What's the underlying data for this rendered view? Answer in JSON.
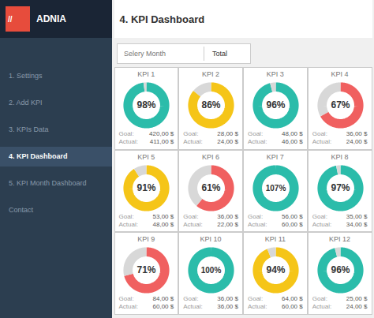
{
  "title": "4. KPI Dashboard",
  "sidebar": {
    "logo": [
      "//",
      "ADNIA"
    ],
    "items": [
      "1. Settings",
      "2. Add KPI",
      "3. KPIs Data",
      "4. KPI Dashboard",
      "5. KPI Month Dashboard",
      "Contact"
    ]
  },
  "selector": [
    "Selery Month",
    "Total"
  ],
  "chart_data": [
    {
      "type": "pie",
      "title": "KPI 1",
      "values": [
        98,
        2
      ],
      "colors": [
        "#2bbcaa",
        "#d8d8d8"
      ],
      "annotations": [
        "98%",
        "Goal:",
        "420,00 $",
        "Actual:",
        "411,00 $"
      ]
    },
    {
      "type": "pie",
      "title": "KPI 2",
      "values": [
        86,
        14
      ],
      "colors": [
        "#f5c518",
        "#d8d8d8"
      ],
      "annotations": [
        "86%",
        "Goal:",
        "28,00 $",
        "Actual:",
        "24,00 $"
      ]
    },
    {
      "type": "pie",
      "title": "KPI 3",
      "values": [
        96,
        4
      ],
      "colors": [
        "#2bbcaa",
        "#d8d8d8"
      ],
      "annotations": [
        "96%",
        "Goal:",
        "48,00 $",
        "Actual:",
        "46,00 $"
      ]
    },
    {
      "type": "pie",
      "title": "KPI 4",
      "values": [
        67,
        33
      ],
      "colors": [
        "#f06060",
        "#d8d8d8"
      ],
      "annotations": [
        "67%",
        "Goal:",
        "36,00 $",
        "Actual:",
        "24,00 $"
      ]
    },
    {
      "type": "pie",
      "title": "KPI 5",
      "values": [
        91,
        9
      ],
      "colors": [
        "#f5c518",
        "#d8d8d8"
      ],
      "annotations": [
        "91%",
        "Goal:",
        "53,00 $",
        "Actual:",
        "48,00 $"
      ]
    },
    {
      "type": "pie",
      "title": "KPI 6",
      "values": [
        61,
        39
      ],
      "colors": [
        "#f06060",
        "#d8d8d8"
      ],
      "annotations": [
        "61%",
        "Goal:",
        "36,00 $",
        "Actual:",
        "22,00 $"
      ]
    },
    {
      "type": "pie",
      "title": "KPI 7",
      "values": [
        100
      ],
      "colors": [
        "#2bbcaa"
      ],
      "annotations": [
        "107%",
        "Goal:",
        "56,00 $",
        "Actual:",
        "60,00 $"
      ]
    },
    {
      "type": "pie",
      "title": "KPI 8",
      "values": [
        97,
        3
      ],
      "colors": [
        "#2bbcaa",
        "#d8d8d8"
      ],
      "annotations": [
        "97%",
        "Goal:",
        "35,00 $",
        "Actual:",
        "34,00 $"
      ]
    },
    {
      "type": "pie",
      "title": "KPI 9",
      "values": [
        71,
        29
      ],
      "colors": [
        "#f06060",
        "#d8d8d8"
      ],
      "annotations": [
        "71%",
        "Goal:",
        "84,00 $",
        "Actual:",
        "60,00 $"
      ]
    },
    {
      "type": "pie",
      "title": "KPI 10",
      "values": [
        100
      ],
      "colors": [
        "#2bbcaa"
      ],
      "annotations": [
        "100%",
        "Goal:",
        "36,00 $",
        "Actual:",
        "36,00 $"
      ]
    },
    {
      "type": "pie",
      "title": "KPI 11",
      "values": [
        94,
        6
      ],
      "colors": [
        "#f5c518",
        "#d8d8d8"
      ],
      "annotations": [
        "94%",
        "Goal:",
        "64,00 $",
        "Actual:",
        "60,00 $"
      ]
    },
    {
      "type": "pie",
      "title": "KPI 12",
      "values": [
        96,
        4
      ],
      "colors": [
        "#2bbcaa",
        "#d8d8d8"
      ],
      "annotations": [
        "96%",
        "Goal:",
        "25,00 $",
        "Actual:",
        "24,00 $"
      ]
    }
  ]
}
